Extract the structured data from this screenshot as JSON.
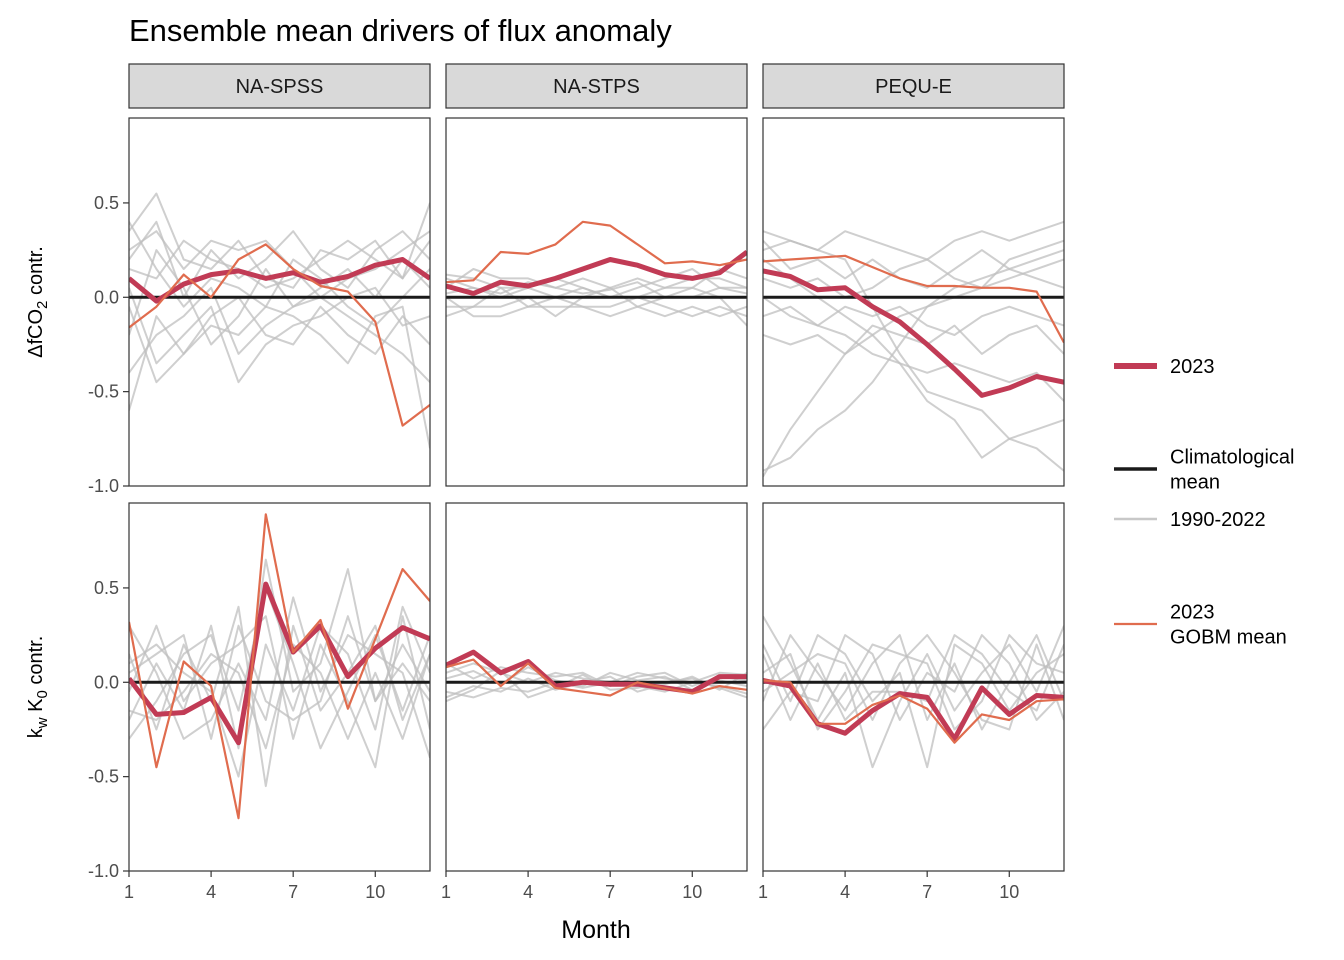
{
  "chart_data": {
    "type": "line",
    "title": "Ensemble mean drivers of flux anomaly",
    "xlabel": "Month",
    "x": [
      1,
      2,
      3,
      4,
      5,
      6,
      7,
      8,
      9,
      10,
      11,
      12
    ],
    "xticks": [
      1,
      4,
      7,
      10
    ],
    "xlim": [
      1,
      12
    ],
    "ylim": [
      -1.0,
      0.95
    ],
    "yticks": [
      -1.0,
      -0.5,
      0.0,
      0.5
    ],
    "ytick_labels": [
      "-1.0",
      "-0.5",
      "0.0",
      "0.5"
    ],
    "columns": [
      "NA-SPSS",
      "NA-STPS",
      "PEQU-E"
    ],
    "rows": [
      {
        "label_main": "ΔfCO",
        "label_sub": "2",
        "label_rest": " contr."
      },
      {
        "label_main": "k",
        "label_sub": "w",
        "label_mid": " K",
        "label_sub2": "0",
        "label_rest": " contr."
      }
    ],
    "legend": {
      "items": [
        {
          "label": "2023",
          "color": "#c13b55"
        },
        {
          "label_lines": [
            "Climatological",
            "mean"
          ],
          "color": "#1a1a1a"
        },
        {
          "label": "1990-2022",
          "color": "#c8c8c8"
        },
        {
          "label_lines": [
            "2023",
            "GOBM mean"
          ],
          "color": "#e06c4e"
        }
      ]
    },
    "colors": {
      "y2023": "#c13b55",
      "clim": "#1a1a1a",
      "history": "#bfbfbf",
      "gobm": "#e06c4e",
      "strip_fill": "#d9d9d9"
    },
    "panels": [
      {
        "row": 0,
        "col": 0,
        "y2023": [
          0.1,
          -0.02,
          0.07,
          0.12,
          0.14,
          0.1,
          0.13,
          0.08,
          0.11,
          0.17,
          0.2,
          0.1
        ],
        "gobm": [
          -0.16,
          -0.05,
          0.12,
          0.0,
          0.2,
          0.28,
          0.15,
          0.06,
          0.03,
          -0.13,
          -0.68,
          -0.57
        ],
        "history": [
          [
            0.35,
            0.55,
            0.2,
            0.15,
            0.3,
            0.1,
            0.05,
            0.25,
            0.2,
            0.3,
            0.1,
            0.5
          ],
          [
            -0.4,
            -0.2,
            -0.1,
            0.05,
            -0.3,
            -0.15,
            -0.05,
            0.0,
            -0.1,
            -0.2,
            -0.3,
            -0.45
          ],
          [
            0.2,
            0.4,
            0.0,
            0.25,
            0.1,
            0.2,
            0.35,
            0.15,
            0.05,
            0.25,
            0.35,
            0.2
          ],
          [
            -0.6,
            -0.1,
            -0.3,
            -0.15,
            -0.2,
            -0.05,
            -0.1,
            -0.2,
            -0.35,
            -0.1,
            -0.05,
            -0.8
          ],
          [
            0.05,
            -0.35,
            -0.2,
            -0.05,
            -0.45,
            -0.25,
            -0.15,
            -0.1,
            0.0,
            0.05,
            -0.15,
            -0.1
          ],
          [
            0.15,
            0.1,
            0.3,
            0.2,
            0.15,
            0.05,
            0.1,
            0.2,
            0.3,
            0.2,
            0.1,
            0.3
          ],
          [
            -0.2,
            0.25,
            0.05,
            -0.25,
            -0.1,
            0.15,
            -0.05,
            0.05,
            0.15,
            0.0,
            0.2,
            0.05
          ],
          [
            0.4,
            0.15,
            -0.05,
            0.1,
            0.05,
            -0.05,
            0.2,
            0.1,
            -0.05,
            -0.15,
            0.0,
            0.15
          ],
          [
            -0.05,
            -0.45,
            -0.3,
            -0.1,
            0.0,
            -0.2,
            -0.25,
            -0.05,
            -0.2,
            -0.3,
            -0.1,
            -0.25
          ],
          [
            0.25,
            0.35,
            0.15,
            0.3,
            0.25,
            0.3,
            0.15,
            0.0,
            0.1,
            0.15,
            0.25,
            0.35
          ]
        ]
      },
      {
        "row": 0,
        "col": 1,
        "y2023": [
          0.06,
          0.02,
          0.08,
          0.06,
          0.1,
          0.15,
          0.2,
          0.17,
          0.12,
          0.1,
          0.13,
          0.24
        ],
        "gobm": [
          0.08,
          0.09,
          0.24,
          0.23,
          0.28,
          0.4,
          0.38,
          0.28,
          0.18,
          0.19,
          0.17,
          0.2
        ],
        "history": [
          [
            0.1,
            0.05,
            0.0,
            0.05,
            0.1,
            0.05,
            0.0,
            0.05,
            0.1,
            0.15,
            0.05,
            0.05
          ],
          [
            -0.05,
            -0.05,
            0.05,
            -0.05,
            0.0,
            -0.05,
            -0.05,
            0.0,
            -0.05,
            -0.1,
            -0.05,
            -0.1
          ],
          [
            0.05,
            0.15,
            0.1,
            0.1,
            0.05,
            0.1,
            0.05,
            0.1,
            0.05,
            0.05,
            0.15,
            0.1
          ],
          [
            -0.1,
            -0.05,
            -0.05,
            0.0,
            -0.1,
            0.0,
            0.05,
            -0.05,
            0.0,
            0.05,
            0.0,
            -0.15
          ],
          [
            0.12,
            0.1,
            0.05,
            0.05,
            0.0,
            0.05,
            0.0,
            0.0,
            0.05,
            0.1,
            0.1,
            0.05
          ],
          [
            0.0,
            -0.1,
            -0.1,
            -0.05,
            -0.05,
            -0.05,
            -0.1,
            -0.05,
            -0.1,
            -0.05,
            -0.1,
            -0.05
          ],
          [
            0.02,
            0.05,
            0.02,
            0.08,
            0.05,
            0.02,
            0.04,
            0.08,
            0.0,
            0.0,
            0.05,
            0.02
          ]
        ]
      },
      {
        "row": 0,
        "col": 2,
        "y2023": [
          0.14,
          0.11,
          0.04,
          0.05,
          -0.05,
          -0.13,
          -0.25,
          -0.38,
          -0.52,
          -0.48,
          -0.42,
          -0.45
        ],
        "gobm": [
          0.19,
          0.2,
          0.21,
          0.22,
          0.16,
          0.1,
          0.06,
          0.06,
          0.05,
          0.05,
          0.03,
          -0.24
        ],
        "history": [
          [
            -0.92,
            -0.85,
            -0.7,
            -0.6,
            -0.45,
            -0.25,
            -0.05,
            0.05,
            0.1,
            0.15,
            0.2,
            0.25
          ],
          [
            -0.95,
            -0.7,
            -0.5,
            -0.3,
            -0.2,
            -0.1,
            -0.05,
            0.0,
            0.05,
            0.1,
            0.15,
            0.2
          ],
          [
            0.35,
            0.3,
            0.25,
            0.2,
            -0.05,
            -0.3,
            -0.5,
            -0.55,
            -0.6,
            -0.75,
            -0.8,
            -0.92
          ],
          [
            0.2,
            0.1,
            0.0,
            -0.1,
            -0.2,
            -0.35,
            -0.55,
            -0.65,
            -0.85,
            -0.75,
            -0.7,
            -0.65
          ],
          [
            0.0,
            -0.1,
            -0.15,
            -0.2,
            -0.3,
            -0.35,
            -0.4,
            -0.35,
            -0.4,
            -0.45,
            -0.4,
            -0.55
          ],
          [
            0.25,
            0.3,
            0.25,
            0.35,
            0.3,
            0.25,
            0.2,
            0.3,
            0.35,
            0.3,
            0.35,
            0.4
          ],
          [
            0.1,
            0.05,
            0.1,
            0.0,
            0.05,
            0.15,
            0.2,
            0.1,
            0.05,
            0.2,
            0.25,
            0.3
          ],
          [
            -0.1,
            -0.05,
            -0.15,
            -0.05,
            -0.1,
            -0.05,
            -0.15,
            -0.2,
            -0.1,
            -0.05,
            -0.1,
            -0.15
          ],
          [
            0.3,
            0.15,
            0.2,
            0.1,
            0.2,
            0.1,
            0.05,
            0.15,
            0.25,
            0.15,
            0.1,
            0.05
          ],
          [
            -0.2,
            -0.25,
            -0.2,
            -0.3,
            -0.15,
            -0.2,
            -0.25,
            -0.15,
            -0.3,
            -0.2,
            -0.15,
            -0.3
          ]
        ]
      },
      {
        "row": 1,
        "col": 0,
        "y2023": [
          0.02,
          -0.17,
          -0.16,
          -0.08,
          -0.32,
          0.52,
          0.16,
          0.3,
          0.03,
          0.18,
          0.29,
          0.23
        ],
        "gobm": [
          0.32,
          -0.45,
          0.11,
          -0.02,
          -0.72,
          0.89,
          0.16,
          0.33,
          -0.14,
          0.23,
          0.6,
          0.43
        ],
        "history": [
          [
            -0.2,
            0.1,
            -0.15,
            0.3,
            -0.35,
            0.65,
            -0.05,
            0.1,
            0.6,
            -0.1,
            0.2,
            -0.05
          ],
          [
            0.15,
            -0.25,
            0.2,
            -0.1,
            0.4,
            -0.55,
            0.3,
            -0.15,
            0.05,
            0.3,
            -0.2,
            0.15
          ],
          [
            -0.05,
            0.3,
            -0.1,
            0.1,
            0.2,
            0.35,
            -0.3,
            0.2,
            -0.1,
            -0.45,
            0.35,
            -0.25
          ],
          [
            0.3,
            0.05,
            -0.3,
            -0.2,
            0.1,
            -0.2,
            0.45,
            -0.05,
            0.25,
            0.15,
            0.05,
            -0.4
          ],
          [
            -0.3,
            -0.1,
            0.15,
            0.25,
            -0.15,
            0.5,
            0.1,
            -0.35,
            -0.05,
            0.25,
            -0.15,
            0.25
          ],
          [
            0.1,
            0.2,
            0.05,
            -0.05,
            -0.5,
            0.2,
            -0.15,
            0.3,
            0.15,
            -0.25,
            0.4,
            0.05
          ],
          [
            -0.15,
            -0.2,
            -0.05,
            0.15,
            0.05,
            -0.35,
            0.2,
            0.05,
            -0.3,
            0.05,
            -0.3,
            0.15
          ],
          [
            0.05,
            0.15,
            0.25,
            -0.3,
            0.3,
            -0.1,
            -0.2,
            -0.1,
            0.35,
            -0.1,
            0.1,
            -0.1
          ]
        ]
      },
      {
        "row": 1,
        "col": 1,
        "y2023": [
          0.09,
          0.16,
          0.05,
          0.11,
          -0.02,
          0.0,
          -0.01,
          -0.01,
          -0.03,
          -0.05,
          0.03,
          0.03
        ],
        "gobm": [
          0.08,
          0.12,
          -0.02,
          0.1,
          -0.03,
          -0.05,
          -0.07,
          0.0,
          -0.03,
          -0.06,
          -0.02,
          -0.04
        ],
        "history": [
          [
            0.05,
            0.1,
            0.05,
            0.0,
            0.05,
            0.02,
            0.0,
            0.05,
            0.02,
            0.0,
            0.05,
            0.04
          ],
          [
            -0.05,
            -0.08,
            -0.03,
            -0.05,
            0.0,
            -0.03,
            0.0,
            -0.02,
            -0.05,
            0.0,
            -0.02,
            -0.06
          ],
          [
            0.1,
            0.02,
            0.08,
            0.05,
            0.03,
            0.05,
            -0.02,
            0.03,
            0.05,
            -0.02,
            0.03,
            0.01
          ],
          [
            -0.08,
            -0.02,
            -0.05,
            0.02,
            -0.04,
            0.0,
            0.03,
            -0.05,
            -0.01,
            0.03,
            -0.04,
            0.05
          ],
          [
            0.02,
            0.06,
            -0.01,
            0.08,
            0.01,
            -0.02,
            0.05,
            0.01,
            0.03,
            -0.04,
            0.01,
            -0.02
          ],
          [
            -0.1,
            -0.04,
            0.06,
            -0.08,
            -0.03,
            0.04,
            -0.04,
            -0.03,
            0.0,
            0.02,
            -0.03,
            -0.08
          ]
        ]
      },
      {
        "row": 1,
        "col": 2,
        "y2023": [
          0.01,
          -0.02,
          -0.22,
          -0.27,
          -0.15,
          -0.06,
          -0.08,
          -0.3,
          -0.03,
          -0.17,
          -0.07,
          -0.08
        ],
        "gobm": [
          0.01,
          0.0,
          -0.22,
          -0.22,
          -0.12,
          -0.07,
          -0.14,
          -0.32,
          -0.17,
          -0.2,
          -0.1,
          -0.09
        ],
        "history": [
          [
            0.35,
            0.1,
            -0.2,
            0.05,
            -0.45,
            -0.1,
            0.15,
            -0.15,
            0.05,
            0.2,
            -0.05,
            0.3
          ],
          [
            -0.1,
            0.25,
            0.05,
            -0.15,
            0.1,
            0.25,
            -0.2,
            0.1,
            -0.25,
            0.0,
            0.25,
            -0.1
          ],
          [
            0.2,
            -0.1,
            0.25,
            0.15,
            -0.1,
            0.05,
            -0.45,
            0.2,
            0.1,
            -0.15,
            0.05,
            0.15
          ],
          [
            -0.25,
            -0.05,
            -0.1,
            0.25,
            0.15,
            -0.2,
            0.05,
            -0.05,
            0.25,
            0.1,
            -0.2,
            -0.05
          ],
          [
            0.05,
            0.15,
            -0.25,
            -0.05,
            0.2,
            0.15,
            0.1,
            -0.25,
            -0.1,
            0.25,
            0.1,
            0.05
          ],
          [
            0.15,
            -0.2,
            0.1,
            -0.2,
            -0.05,
            -0.05,
            -0.1,
            0.25,
            0.15,
            -0.05,
            -0.15,
            0.2
          ],
          [
            -0.05,
            0.05,
            0.15,
            0.1,
            -0.2,
            0.1,
            0.25,
            0.05,
            -0.2,
            -0.25,
            0.2,
            -0.2
          ]
        ]
      }
    ]
  }
}
